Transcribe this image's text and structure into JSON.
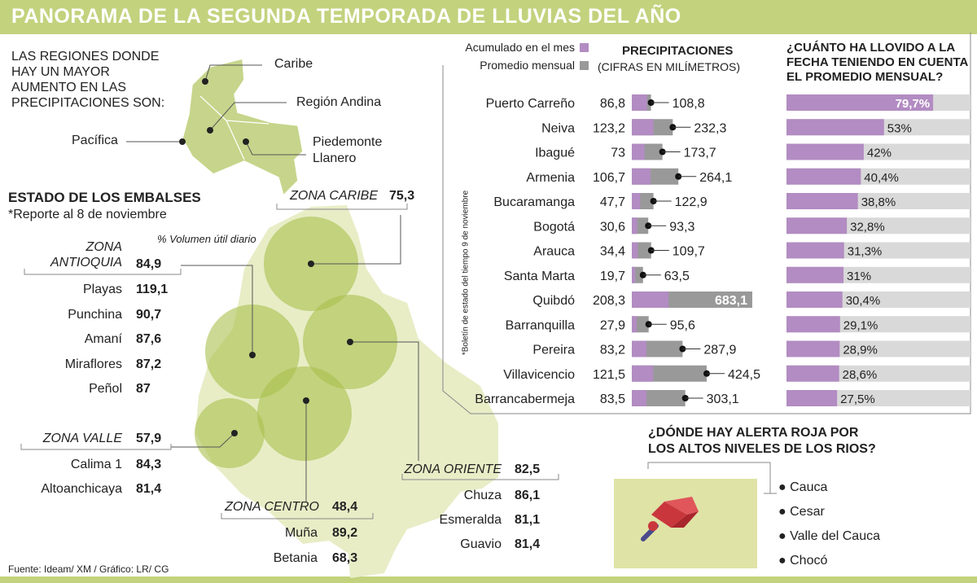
{
  "title": "PANORAMA DE LA SEGUNDA TEMPORADA DE LLUVIAS DEL AÑO",
  "regions": {
    "intro": "LAS REGIONES DONDE HAY UN MAYOR AUMENTO EN LAS PRECIPITACIONES SON:",
    "labels": [
      "Caribe",
      "Región Andina",
      "Pacífica",
      "Piedemonte",
      "Llanero"
    ]
  },
  "reservoirs": {
    "title": "ESTADO DE LOS EMBALSES",
    "subtitle": "*Reporte al 8 de noviembre",
    "unit_note": "% Volumen útil diario",
    "zones": [
      {
        "name_lines": [
          "ZONA",
          "ANTIOQUIA"
        ],
        "value": "84,9",
        "items": [
          {
            "name": "Playas",
            "value": "119,1"
          },
          {
            "name": "Punchina",
            "value": "90,7"
          },
          {
            "name": "Amaní",
            "value": "87,6"
          },
          {
            "name": "Miraflores",
            "value": "87,2"
          },
          {
            "name": "Peñol",
            "value": "87"
          }
        ]
      },
      {
        "name_lines": [
          "ZONA VALLE"
        ],
        "value": "57,9",
        "items": [
          {
            "name": "Calima 1",
            "value": "84,3"
          },
          {
            "name": "Altoanchicaya",
            "value": "81,4"
          }
        ]
      },
      {
        "name_lines": [
          "ZONA CARIBE"
        ],
        "value": "75,3",
        "items": []
      },
      {
        "name_lines": [
          "ZONA CENTRO"
        ],
        "value": "48,4",
        "items": [
          {
            "name": "Muña",
            "value": "89,2"
          },
          {
            "name": "Betania",
            "value": "68,3"
          }
        ]
      },
      {
        "name_lines": [
          "ZONA ORIENTE"
        ],
        "value": "82,5",
        "items": [
          {
            "name": "Chuza",
            "value": "86,1"
          },
          {
            "name": "Esmeralda",
            "value": "81,1"
          },
          {
            "name": "Guavio",
            "value": "81,4"
          }
        ]
      }
    ]
  },
  "chart_data": [
    {
      "type": "bar",
      "title": "PRECIPITACIONES",
      "subtitle": "(CIFRAS EN MILÍMETROS)",
      "side_note": "*Boletín de estado del tiempo 9 de noviembre",
      "categories": [
        "Puerto Carreño",
        "Neiva",
        "Ibagué",
        "Armenia",
        "Bucaramanga",
        "Bogotá",
        "Arauca",
        "Santa Marta",
        "Quibdó",
        "Barranquilla",
        "Pereira",
        "Villavicencio",
        "Barrancabermeja"
      ],
      "series": [
        {
          "name": "Acumulado en el mes",
          "color": "#b28cc2",
          "values": [
            86.8,
            123.2,
            73,
            106.7,
            47.7,
            30.6,
            34.4,
            19.7,
            208.3,
            27.9,
            83.2,
            121.5,
            83.5
          ],
          "labels": [
            "86,8",
            "123,2",
            "73",
            "106,7",
            "47,7",
            "30,6",
            "34,4",
            "19,7",
            "208,3",
            "27,9",
            "83,2",
            "121,5",
            "83,5"
          ]
        },
        {
          "name": "Promedio mensual",
          "color": "#999999",
          "values": [
            108.8,
            232.3,
            173.7,
            264.1,
            122.9,
            93.3,
            109.7,
            63.5,
            683.1,
            95.6,
            287.9,
            424.5,
            303.1
          ],
          "labels": [
            "108,8",
            "232,3",
            "173,7",
            "264,1",
            "122,9",
            "93,3",
            "109,7",
            "63,5",
            "683,1",
            "95,6",
            "287,9",
            "424,5",
            "303,1"
          ]
        }
      ]
    },
    {
      "type": "bar",
      "title": "¿CUÁNTO HA LLOVIDO A LA FECHA TENIENDO EN CUENTA EL PROMEDIO MENSUAL?",
      "categories": [
        "Puerto Carreño",
        "Neiva",
        "Ibagué",
        "Armenia",
        "Bucaramanga",
        "Bogotá",
        "Arauca",
        "Santa Marta",
        "Quibdó",
        "Barranquilla",
        "Pereira",
        "Villavicencio",
        "Barrancabermeja"
      ],
      "values": [
        79.7,
        53,
        42,
        40.4,
        38.8,
        32.8,
        31.3,
        31,
        30.4,
        29.1,
        28.9,
        28.6,
        27.5
      ],
      "labels": [
        "79,7%",
        "53%",
        "42%",
        "40,4%",
        "38,8%",
        "32,8%",
        "31,3%",
        "31%",
        "30,4%",
        "29,1%",
        "28,9%",
        "28,6%",
        "27,5%"
      ],
      "ylim": [
        0,
        100
      ],
      "colors": {
        "fill": "#b28cc2",
        "track": "#d9d9d9"
      }
    }
  ],
  "alert": {
    "title_lines": [
      "¿DÓNDE HAY ALERTA ROJA POR",
      "LOS ALTOS NIVELES DE LOS RIOS?"
    ],
    "items": [
      "Cauca",
      "Cesar",
      "Valle del Cauca",
      "Chocó"
    ]
  },
  "source": "Fuente: Ideam/ XM / Gráfico: LR/ CG",
  "colors": {
    "green": "#c3d27d",
    "map": "#e8edc6",
    "circle": "#a9bf4d",
    "purple": "#b28cc2",
    "gray": "#999999"
  }
}
